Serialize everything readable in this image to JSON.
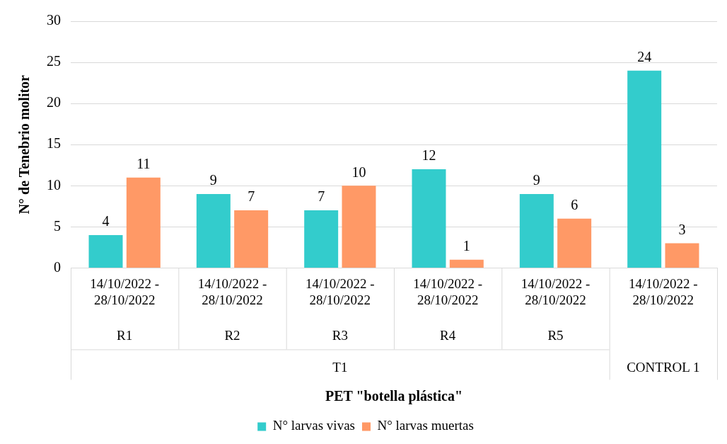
{
  "chart_data": {
    "type": "bar",
    "ylabel": "N° de Tenebrio molitor",
    "categories": [
      "14/10/2022 - 28/10/2022",
      "14/10/2022 - 28/10/2022",
      "14/10/2022 - 28/10/2022",
      "14/10/2022 - 28/10/2022",
      "14/10/2022 - 28/10/2022",
      "14/10/2022 - 28/10/2022"
    ],
    "series": [
      {
        "name": "N° larvas vivas",
        "color": "#33cccc",
        "values": [
          4,
          9,
          7,
          12,
          9,
          24
        ]
      },
      {
        "name": "N° larvas muertas",
        "color": "#ff9966",
        "values": [
          11,
          7,
          10,
          1,
          6,
          3
        ]
      }
    ],
    "ylim": [
      0,
      30
    ],
    "yticks": [
      0,
      5,
      10,
      15,
      20,
      25,
      30
    ],
    "grid": "y",
    "legend": "bottom",
    "data_labels": true,
    "annotations": [
      "R1",
      "R2",
      "R3",
      "R4",
      "R5",
      "T1",
      "CONTROL 1",
      "PET \"botella plástica\""
    ]
  }
}
